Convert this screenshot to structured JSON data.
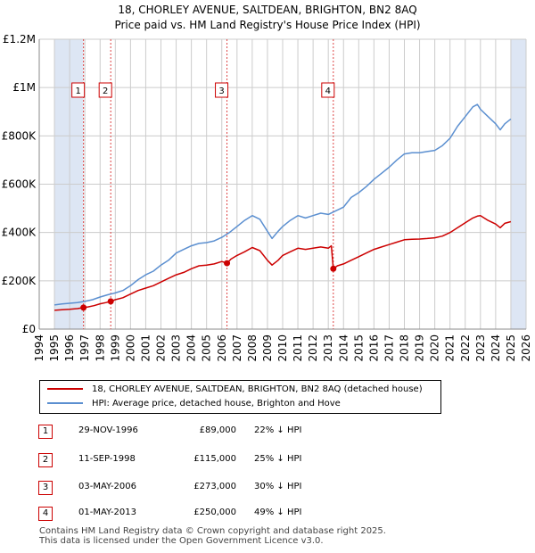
{
  "title_line1": "18, CHORLEY AVENUE, SALTDEAN, BRIGHTON, BN2 8AQ",
  "title_line2": "Price paid vs. HM Land Registry's House Price Index (HPI)",
  "colors": {
    "property": "#cc0000",
    "hpi": "#5b8fd0",
    "shade": "#dde6f4",
    "grid": "#cccccc",
    "marker_line": "#dd4444"
  },
  "legend": {
    "property_label": "18, CHORLEY AVENUE, SALTDEAN, BRIGHTON, BN2 8AQ (detached house)",
    "hpi_label": "HPI: Average price, detached house, Brighton and Hove"
  },
  "transactions": [
    {
      "num": "1",
      "date": "29-NOV-1996",
      "price": "£89,000",
      "hpi_delta": "22% ↓ HPI"
    },
    {
      "num": "2",
      "date": "11-SEP-1998",
      "price": "£115,000",
      "hpi_delta": "25% ↓ HPI"
    },
    {
      "num": "3",
      "date": "03-MAY-2006",
      "price": "£273,000",
      "hpi_delta": "30% ↓ HPI"
    },
    {
      "num": "4",
      "date": "01-MAY-2013",
      "price": "£250,000",
      "hpi_delta": "49% ↓ HPI"
    }
  ],
  "footer_line1": "Contains HM Land Registry data © Crown copyright and database right 2025.",
  "footer_line2": "This data is licensed under the Open Government Licence v3.0.",
  "chart_data": {
    "type": "line",
    "title": "18, CHORLEY AVENUE, SALTDEAN, BRIGHTON, BN2 8AQ",
    "subtitle": "Price paid vs. HM Land Registry's House Price Index (HPI)",
    "xlabel": "",
    "ylabel": "",
    "xlim": [
      1994,
      2026
    ],
    "ylim": [
      0,
      1200000
    ],
    "x_ticks": [
      1994,
      1995,
      1996,
      1997,
      1998,
      1999,
      2000,
      2001,
      2002,
      2003,
      2004,
      2005,
      2006,
      2007,
      2008,
      2009,
      2010,
      2011,
      2012,
      2013,
      2014,
      2015,
      2016,
      2017,
      2018,
      2019,
      2020,
      2021,
      2022,
      2023,
      2024,
      2025,
      2026
    ],
    "y_ticks": [
      {
        "value": 0,
        "label": "£0"
      },
      {
        "value": 200000,
        "label": "£200K"
      },
      {
        "value": 400000,
        "label": "£400K"
      },
      {
        "value": 600000,
        "label": "£600K"
      },
      {
        "value": 800000,
        "label": "£800K"
      },
      {
        "value": 1000000,
        "label": "£1M"
      },
      {
        "value": 1200000,
        "label": "£1.2M"
      }
    ],
    "shaded_ranges": [
      [
        1995.0,
        1996.9
      ],
      [
        2025.0,
        2026.0
      ]
    ],
    "markers": [
      {
        "label": "1",
        "x": 1996.91,
        "y": 89000
      },
      {
        "label": "2",
        "x": 1998.7,
        "y": 115000
      },
      {
        "label": "3",
        "x": 2006.34,
        "y": 273000
      },
      {
        "label": "4",
        "x": 2013.33,
        "y": 250000
      }
    ],
    "series": [
      {
        "name": "HPI: Average price, detached house, Brighton and Hove",
        "color": "#5b8fd0",
        "x": [
          1995.0,
          1995.5,
          1996.0,
          1996.5,
          1997.0,
          1997.5,
          1998.0,
          1998.5,
          1999.0,
          1999.5,
          2000.0,
          2000.5,
          2001.0,
          2001.5,
          2002.0,
          2002.5,
          2003.0,
          2003.5,
          2004.0,
          2004.5,
          2005.0,
          2005.5,
          2006.0,
          2006.5,
          2007.0,
          2007.5,
          2008.0,
          2008.5,
          2009.0,
          2009.3,
          2009.7,
          2010.0,
          2010.5,
          2011.0,
          2011.5,
          2012.0,
          2012.5,
          2013.0,
          2013.5,
          2014.0,
          2014.5,
          2015.0,
          2015.5,
          2016.0,
          2016.5,
          2017.0,
          2017.5,
          2018.0,
          2018.5,
          2019.0,
          2019.5,
          2020.0,
          2020.5,
          2021.0,
          2021.5,
          2022.0,
          2022.5,
          2022.8,
          2023.0,
          2023.5,
          2024.0,
          2024.3,
          2024.6,
          2025.0
        ],
        "values": [
          100000,
          104000,
          107000,
          110000,
          115000,
          122000,
          133000,
          142000,
          150000,
          160000,
          180000,
          205000,
          225000,
          240000,
          265000,
          285000,
          315000,
          330000,
          345000,
          355000,
          358000,
          365000,
          380000,
          400000,
          425000,
          450000,
          470000,
          455000,
          405000,
          375000,
          405000,
          425000,
          450000,
          470000,
          460000,
          470000,
          480000,
          475000,
          490000,
          505000,
          545000,
          565000,
          590000,
          620000,
          645000,
          670000,
          700000,
          725000,
          730000,
          730000,
          735000,
          740000,
          760000,
          790000,
          840000,
          880000,
          920000,
          930000,
          910000,
          880000,
          850000,
          825000,
          850000,
          870000
        ]
      },
      {
        "name": "18, CHORLEY AVENUE, SALTDEAN, BRIGHTON, BN2 8AQ (detached house)",
        "color": "#cc0000",
        "x": [
          1995.0,
          1995.5,
          1996.0,
          1996.5,
          1996.91,
          1997.2,
          1997.6,
          1998.0,
          1998.4,
          1998.7,
          1999.0,
          1999.5,
          2000.0,
          2000.5,
          2001.0,
          2001.5,
          2002.0,
          2002.5,
          2003.0,
          2003.5,
          2004.0,
          2004.5,
          2005.0,
          2005.5,
          2006.0,
          2006.34,
          2006.6,
          2007.0,
          2007.5,
          2008.0,
          2008.5,
          2009.0,
          2009.3,
          2009.7,
          2010.0,
          2010.5,
          2011.0,
          2011.5,
          2012.0,
          2012.5,
          2013.0,
          2013.2,
          2013.33,
          2013.6,
          2014.0,
          2014.5,
          2015.0,
          2015.5,
          2016.0,
          2016.5,
          2017.0,
          2017.5,
          2018.0,
          2018.5,
          2019.0,
          2019.5,
          2020.0,
          2020.5,
          2021.0,
          2021.5,
          2022.0,
          2022.5,
          2022.8,
          2023.0,
          2023.5,
          2024.0,
          2024.3,
          2024.6,
          2025.0
        ],
        "values": [
          78000,
          80000,
          82000,
          85000,
          89000,
          92000,
          97000,
          105000,
          110000,
          115000,
          122000,
          130000,
          145000,
          160000,
          170000,
          180000,
          195000,
          210000,
          225000,
          235000,
          250000,
          262000,
          265000,
          270000,
          280000,
          273000,
          290000,
          305000,
          320000,
          338000,
          325000,
          285000,
          265000,
          285000,
          305000,
          320000,
          335000,
          330000,
          335000,
          340000,
          335000,
          345000,
          250000,
          262000,
          270000,
          285000,
          300000,
          315000,
          330000,
          340000,
          350000,
          360000,
          370000,
          372000,
          373000,
          375000,
          378000,
          385000,
          400000,
          420000,
          440000,
          460000,
          468000,
          470000,
          450000,
          435000,
          420000,
          438000,
          445000
        ]
      }
    ]
  }
}
